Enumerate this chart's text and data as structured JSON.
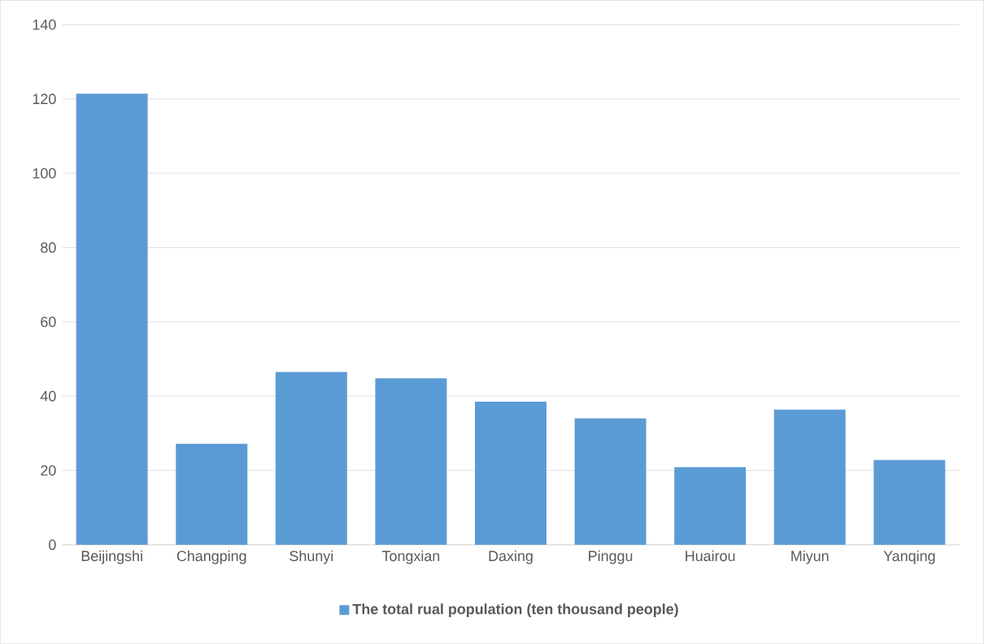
{
  "chart_data": {
    "type": "bar",
    "categories": [
      "Beijingshi",
      "Changping",
      "Shunyi",
      "Tongxian",
      "Daxing",
      "Pinggu",
      "Huairou",
      "Miyun",
      "Yanqing"
    ],
    "series": [
      {
        "name": "The total rual population (ten thousand people)",
        "color": "#5b9bd5",
        "values": [
          121.4,
          27.2,
          46.5,
          44.8,
          38.5,
          34.0,
          20.9,
          36.4,
          22.8
        ]
      }
    ],
    "ylim": [
      0,
      140
    ],
    "yticks": [
      0,
      20,
      40,
      60,
      80,
      100,
      120,
      140
    ],
    "grid": "y",
    "legend": "bottom"
  }
}
